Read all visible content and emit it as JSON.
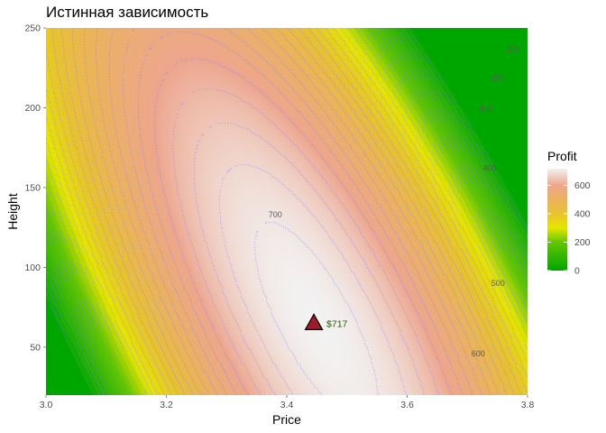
{
  "chart_data": {
    "type": "heatmap",
    "title": "Истинная зависимость",
    "xlabel": "Price",
    "ylabel": "Height",
    "xlim": [
      3.0,
      3.8
    ],
    "ylim": [
      20,
      250
    ],
    "x_ticks": [
      "3.0",
      "3.2",
      "3.4",
      "3.6",
      "3.8"
    ],
    "y_ticks": [
      "50",
      "100",
      "150",
      "200",
      "250"
    ],
    "grid": false,
    "surface": {
      "name": "Profit",
      "max_value": 717,
      "argmax": {
        "x": 3.45,
        "y": 65
      }
    },
    "color_scale": {
      "title": "Profit",
      "breaks": [
        "0",
        "200",
        "400",
        "600"
      ],
      "stops": [
        {
          "value": 0,
          "color": "#00a600"
        },
        {
          "value": 200,
          "color": "#63c600"
        },
        {
          "value": 300,
          "color": "#e6e600"
        },
        {
          "value": 400,
          "color": "#e8c32e"
        },
        {
          "value": 500,
          "color": "#ebb25e"
        },
        {
          "value": 600,
          "color": "#eda68e"
        },
        {
          "value": 717,
          "color": "#f2f2f2"
        }
      ]
    },
    "contours": {
      "line_color": "#7f7fff",
      "labels": [
        {
          "text": "100",
          "x": 3.775,
          "y": 237
        },
        {
          "text": "200",
          "x": 3.751,
          "y": 219
        },
        {
          "text": "300",
          "x": 3.73,
          "y": 199
        },
        {
          "text": "400",
          "x": 3.737,
          "y": 162
        },
        {
          "text": "500",
          "x": 3.751,
          "y": 90
        },
        {
          "text": "600",
          "x": 3.718,
          "y": 46
        },
        {
          "text": "700",
          "x": 3.381,
          "y": 133
        }
      ]
    },
    "peak_marker": {
      "x": 3.445,
      "y": 65,
      "shape": "triangle",
      "fill": "#9b1c2b",
      "label": "$717"
    }
  }
}
